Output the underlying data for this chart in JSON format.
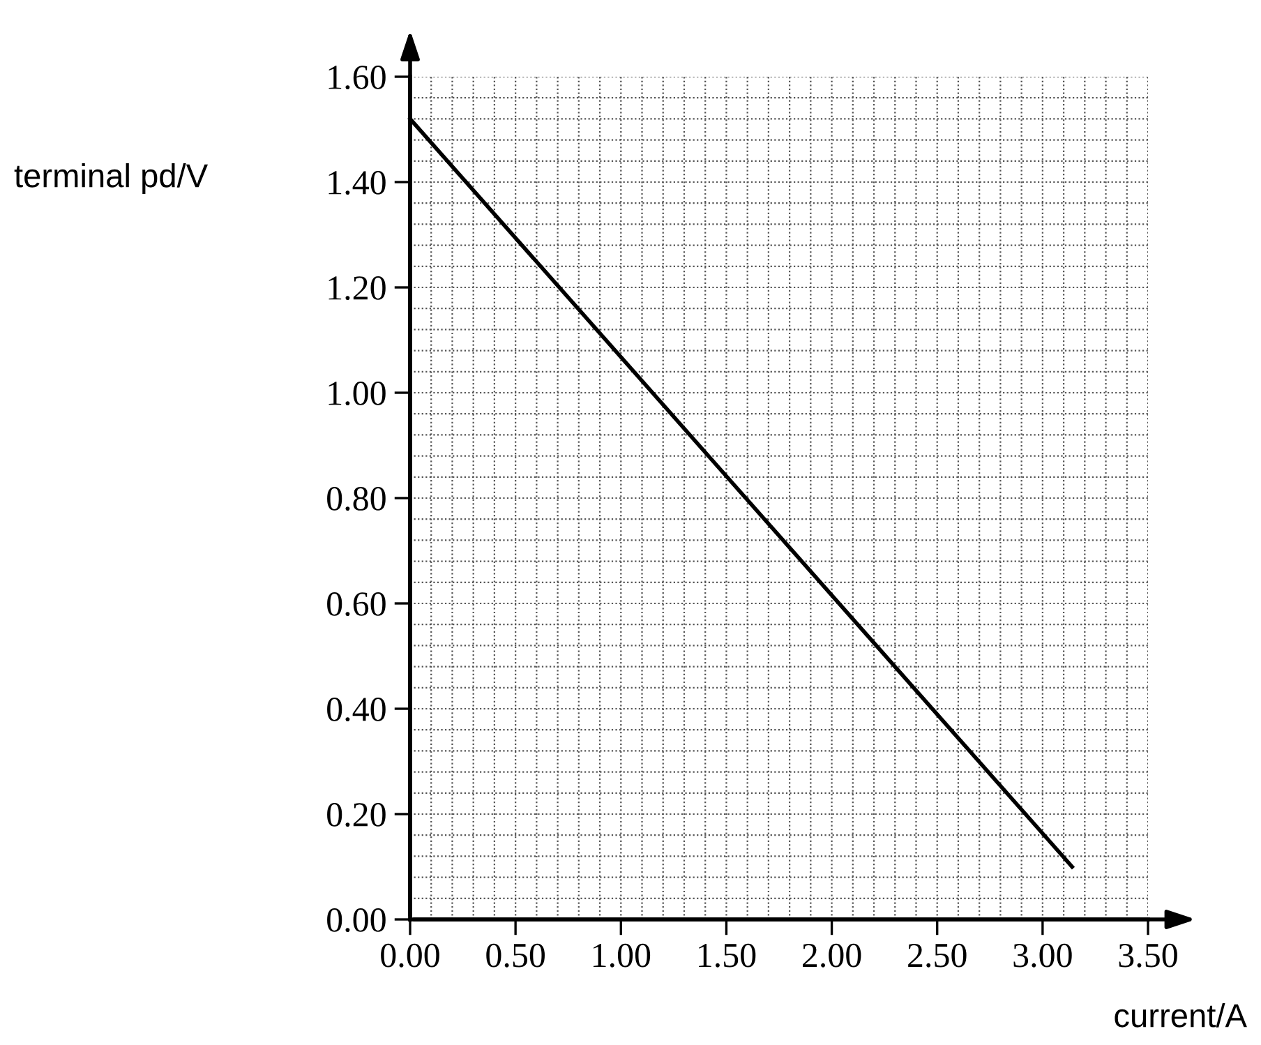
{
  "chart_data": {
    "type": "line",
    "xlabel": "current/A",
    "ylabel": "terminal pd/V",
    "x": [
      0.0,
      3.14
    ],
    "series": [
      {
        "color": "#000000",
        "values": [
          1.52,
          0.1
        ]
      }
    ],
    "xlim": [
      0,
      3.5
    ],
    "ylim": [
      0,
      1.6
    ],
    "xticks": [
      {
        "value": 0,
        "label": "0.00"
      },
      {
        "value": 0.5,
        "label": "0.50"
      },
      {
        "value": 1.0,
        "label": "1.00"
      },
      {
        "value": 1.5,
        "label": "1.50"
      },
      {
        "value": 2.0,
        "label": "2.00"
      },
      {
        "value": 2.5,
        "label": "2.50"
      },
      {
        "value": 3.0,
        "label": "3.00"
      },
      {
        "value": 3.5,
        "label": "3.50"
      }
    ],
    "yticks": [
      {
        "value": 0,
        "label": "0.00"
      },
      {
        "value": 0.2,
        "label": "0.20"
      },
      {
        "value": 0.4,
        "label": "0.40"
      },
      {
        "value": 0.6,
        "label": "0.60"
      },
      {
        "value": 0.8,
        "label": "0.80"
      },
      {
        "value": 1.0,
        "label": "1.00"
      },
      {
        "value": 1.2,
        "label": "1.20"
      },
      {
        "value": 1.4,
        "label": "1.40"
      },
      {
        "value": 1.6,
        "label": "1.60"
      }
    ],
    "grid": true,
    "marker": "none",
    "line_style": "solid"
  }
}
